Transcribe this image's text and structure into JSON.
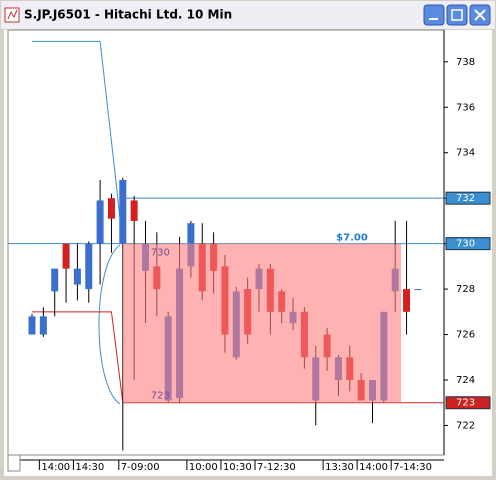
{
  "chart_data": {
    "type": "candlestick",
    "title": "S.JP.J6501 - Hitachi Ltd. 10 Min",
    "categories": [
      null,
      "14:00",
      null,
      null,
      "14:30",
      null,
      null,
      null,
      "7-09:00",
      null,
      null,
      null,
      null,
      null,
      "10:00",
      null,
      null,
      "10:30",
      null,
      null,
      "7-12:30",
      null,
      null,
      null,
      null,
      null,
      "13:30",
      null,
      null,
      "14:00",
      null,
      null,
      "7-14:30",
      null,
      null
    ],
    "open": [
      726.0,
      726.0,
      727.9,
      730.0,
      728.2,
      728.0,
      730.0,
      732.0,
      730.0,
      731.9,
      728.8,
      729.0,
      723.1,
      723.2,
      729.0,
      730.0,
      730.0,
      729.0,
      725.0,
      728.0,
      728.0,
      728.9,
      727.9,
      726.5,
      727.0,
      723.1,
      726.0,
      724.0,
      725.0,
      724.0,
      723.1,
      723.1,
      727.9,
      728.0,
      728.0
    ],
    "high": [
      726.9,
      727.2,
      728.9,
      730.0,
      730.0,
      730.1,
      732.8,
      732.2,
      732.9,
      732.1,
      731.0,
      730.5,
      727.0,
      730.3,
      731.0,
      730.9,
      730.5,
      729.5,
      728.1,
      728.5,
      729.1,
      729.1,
      728.0,
      727.6,
      727.2,
      725.5,
      726.3,
      725.1,
      725.5,
      724.3,
      724.0,
      727.0,
      731.0,
      731.0,
      728.0
    ],
    "low": [
      726.0,
      725.9,
      726.8,
      727.4,
      727.5,
      727.4,
      728.2,
      729.6,
      720.9,
      724.0,
      726.5,
      726.8,
      723.0,
      723.0,
      728.5,
      727.5,
      727.8,
      725.2,
      724.9,
      725.6,
      727.0,
      726.0,
      726.5,
      726.2,
      724.5,
      722.0,
      724.4,
      723.3,
      723.5,
      723.2,
      722.1,
      723.0,
      727.0,
      726.0,
      728.0
    ],
    "close": [
      726.8,
      726.8,
      728.9,
      728.9,
      728.9,
      730.0,
      731.9,
      731.1,
      732.8,
      731.0,
      730.0,
      728.0,
      726.8,
      728.9,
      730.9,
      727.9,
      728.8,
      726.0,
      727.9,
      726.0,
      728.9,
      727.0,
      727.0,
      727.0,
      725.0,
      725.0,
      725.0,
      725.0,
      724.0,
      723.1,
      724.0,
      727.0,
      728.9,
      727.0,
      728.0
    ],
    "up_color": "#3a6fd0",
    "down_color": "#d42020",
    "upper_line": [
      738.9,
      738.9,
      738.9,
      738.9,
      738.9,
      738.9,
      738.9,
      734.5,
      730.0,
      null,
      null,
      null,
      null,
      null,
      null,
      null,
      null,
      null,
      null,
      null,
      null,
      null,
      null,
      null,
      null,
      null,
      null,
      null,
      null,
      null,
      null,
      null,
      null,
      null,
      null
    ],
    "lower_line": [
      727.0,
      727.0,
      727.0,
      727.0,
      727.0,
      727.0,
      727.0,
      727.0,
      723.0,
      null,
      null,
      null,
      null,
      null,
      null,
      null,
      null,
      null,
      null,
      null,
      null,
      null,
      null,
      null,
      null,
      null,
      null,
      null,
      null,
      null,
      null,
      null,
      null,
      null,
      null
    ],
    "levels": [
      {
        "value": 732,
        "color": "#3a8fd0"
      },
      {
        "value": 730,
        "color": "#3a8fd0"
      },
      {
        "value": 723,
        "color": "#cc2222"
      }
    ],
    "range": {
      "label": "$7.00",
      "high_label": "730",
      "low_label": "723",
      "color": "#ff7f7f"
    },
    "ylim": [
      720.7,
      739.4
    ],
    "yticks": [
      722,
      724,
      726,
      728,
      730,
      732,
      734,
      736,
      738
    ]
  }
}
